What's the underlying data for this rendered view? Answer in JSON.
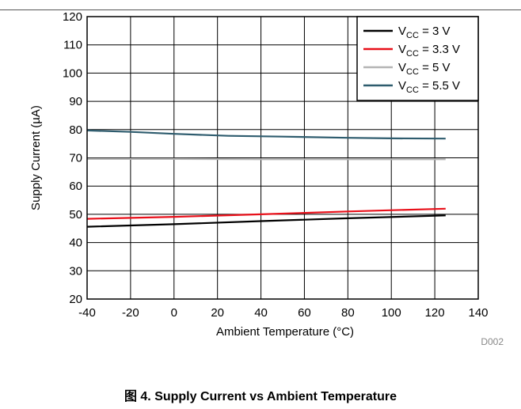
{
  "figure_caption": "图 4. Supply Current vs Ambient Temperature",
  "chart_id_label": "D002",
  "chart_data": {
    "type": "line",
    "xlabel": "Ambient Temperature (°C)",
    "ylabel_prefix": "Supply Current (",
    "ylabel_unit": "µA",
    "ylabel_suffix": ")",
    "xlim": [
      -40,
      140
    ],
    "ylim": [
      20,
      120
    ],
    "x_ticks": [
      -40,
      -20,
      0,
      20,
      40,
      60,
      80,
      100,
      120,
      140
    ],
    "y_ticks": [
      20,
      30,
      40,
      50,
      60,
      70,
      80,
      90,
      100,
      110,
      120
    ],
    "grid": true,
    "legend_position": "top-right",
    "series": [
      {
        "name_main": "V",
        "name_sub": "CC",
        "name_rest": " = 3 V",
        "color": "#000000",
        "x": [
          -40,
          0,
          40,
          80,
          125
        ],
        "y": [
          45.6,
          46.5,
          47.6,
          48.6,
          49.6
        ]
      },
      {
        "name_main": "V",
        "name_sub": "CC",
        "name_rest": " = 3.3 V",
        "color": "#e8101a",
        "x": [
          -40,
          0,
          40,
          80,
          125
        ],
        "y": [
          48.4,
          49.1,
          50.0,
          51.0,
          52.0
        ]
      },
      {
        "name_main": "V",
        "name_sub": "CC",
        "name_rest": " = 5 V",
        "color": "#b4b4b4",
        "x": [
          -40,
          0,
          40,
          80,
          125
        ],
        "y": [
          69.6,
          69.6,
          69.5,
          69.5,
          69.5
        ]
      },
      {
        "name_main": "V",
        "name_sub": "CC",
        "name_rest": " = 5.5 V",
        "color": "#2e5c6e",
        "x": [
          -40,
          -20,
          0,
          25,
          50,
          80,
          100,
          125
        ],
        "y": [
          79.7,
          79.2,
          78.5,
          77.8,
          77.5,
          77.1,
          76.9,
          76.8
        ]
      }
    ]
  }
}
